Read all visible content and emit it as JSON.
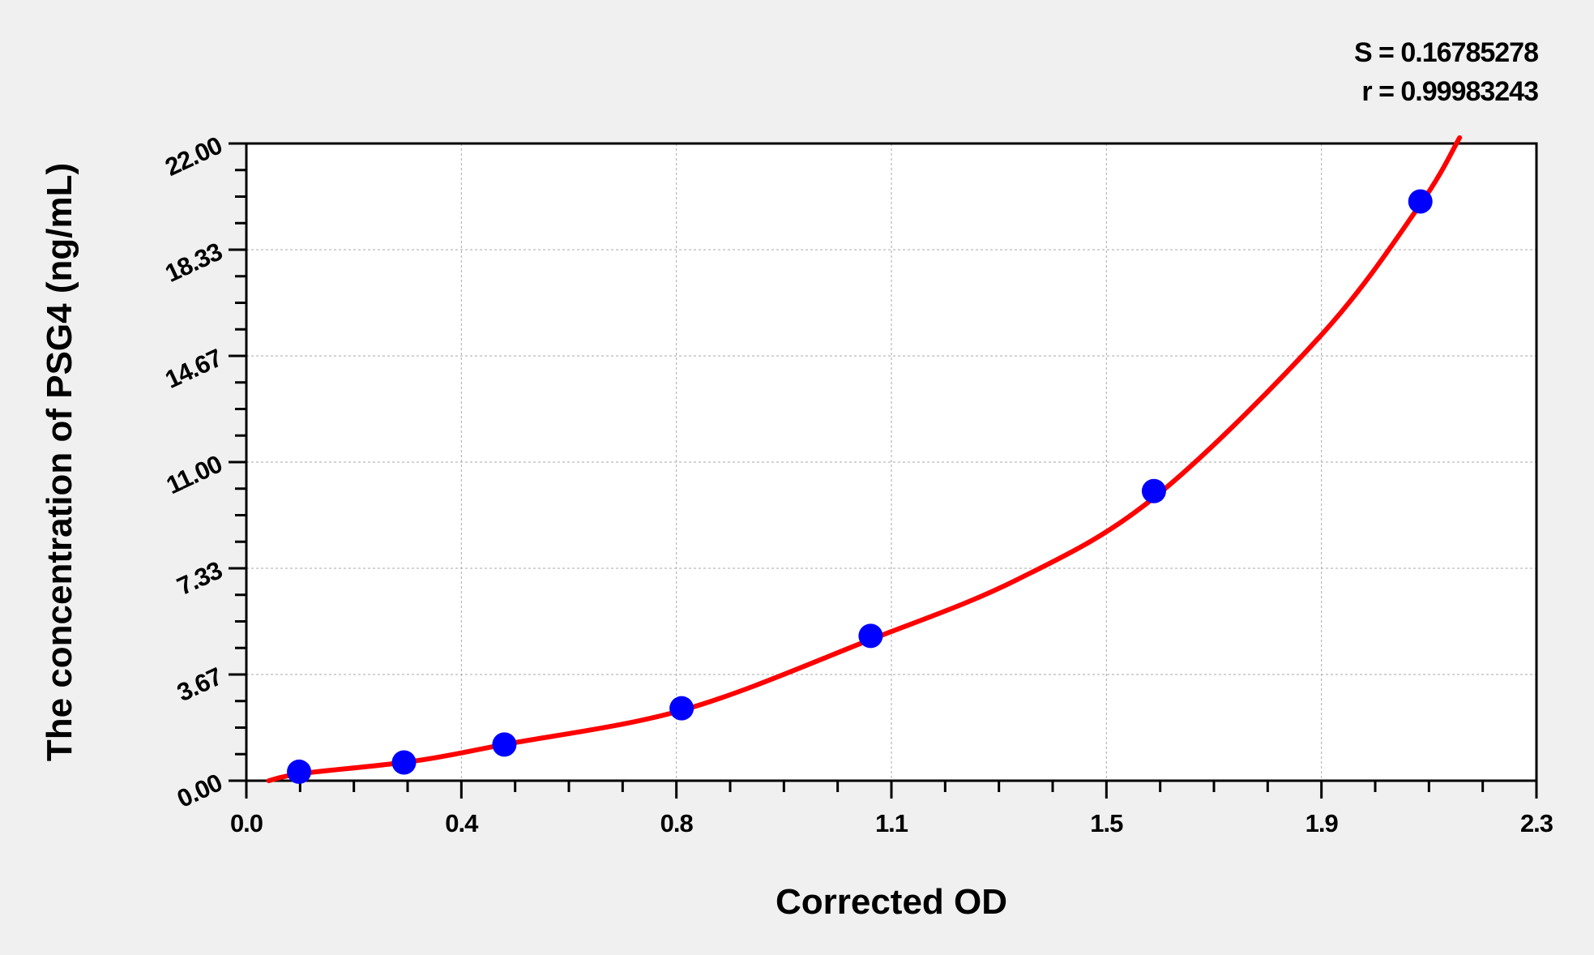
{
  "chart_data": {
    "type": "scatter",
    "title": "",
    "xlabel": "Corrected OD",
    "ylabel": "The concentration of PSG4 (ng/mL)",
    "xlim": [
      0,
      2.3
    ],
    "ylim": [
      0,
      22
    ],
    "x_tick_labels": [
      "0.0",
      "0.4",
      "0.8",
      "1.1",
      "1.5",
      "1.9",
      "2.3"
    ],
    "y_tick_labels": [
      "0.00",
      "3.67",
      "7.33",
      "11.00",
      "14.67",
      "18.33",
      "22.00"
    ],
    "grid": true,
    "stats": [
      "S = 0.16785278",
      "r = 0.99983243"
    ],
    "points": {
      "x": [
        0.094,
        0.281,
        0.46,
        0.776,
        1.113,
        1.618,
        2.093
      ],
      "y": [
        0.31,
        0.63,
        1.25,
        2.5,
        5,
        10,
        20
      ],
      "color": "#0000ff"
    },
    "fit_curve": {
      "color": "#ff0000",
      "x": [
        0.04,
        0.1,
        0.3,
        0.46,
        0.78,
        1.11,
        1.375,
        1.62,
        1.917,
        2.093,
        2.163
      ],
      "y": [
        0.0,
        0.25,
        0.68,
        1.25,
        2.45,
        4.85,
        6.95,
        9.8,
        15.4,
        19.9,
        22.2
      ]
    }
  }
}
